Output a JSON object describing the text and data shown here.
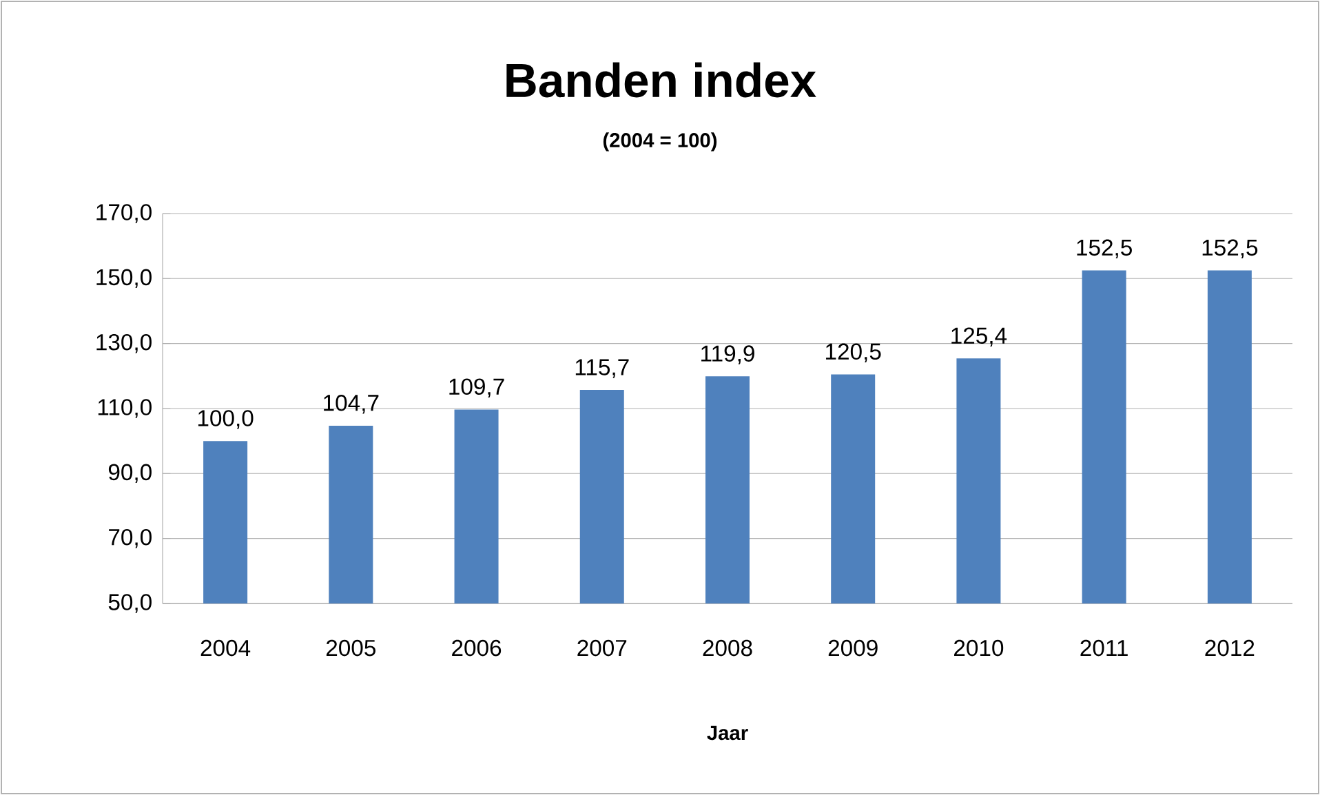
{
  "chart_data": {
    "type": "bar",
    "title": "Banden index",
    "subtitle": "(2004 = 100)",
    "xlabel": "Jaar",
    "categories": [
      "2004",
      "2005",
      "2006",
      "2007",
      "2008",
      "2009",
      "2010",
      "2011",
      "2012"
    ],
    "values": [
      100.0,
      104.7,
      109.7,
      115.7,
      119.9,
      120.5,
      125.4,
      152.5,
      152.5
    ],
    "value_labels": [
      "100,0",
      "104,7",
      "109,7",
      "115,7",
      "119,9",
      "120,5",
      "125,4",
      "152,5",
      "152,5"
    ],
    "color": "#4f81bd",
    "ylim": [
      50,
      170
    ],
    "yticks": [
      {
        "value": 50,
        "label": "50,0"
      },
      {
        "value": 70,
        "label": "70,0"
      },
      {
        "value": 90,
        "label": "90,0"
      },
      {
        "value": 110,
        "label": "110,0"
      },
      {
        "value": 130,
        "label": "130,0"
      },
      {
        "value": 150,
        "label": "150,0"
      },
      {
        "value": 170,
        "label": "170,0"
      }
    ],
    "grid": "y"
  }
}
